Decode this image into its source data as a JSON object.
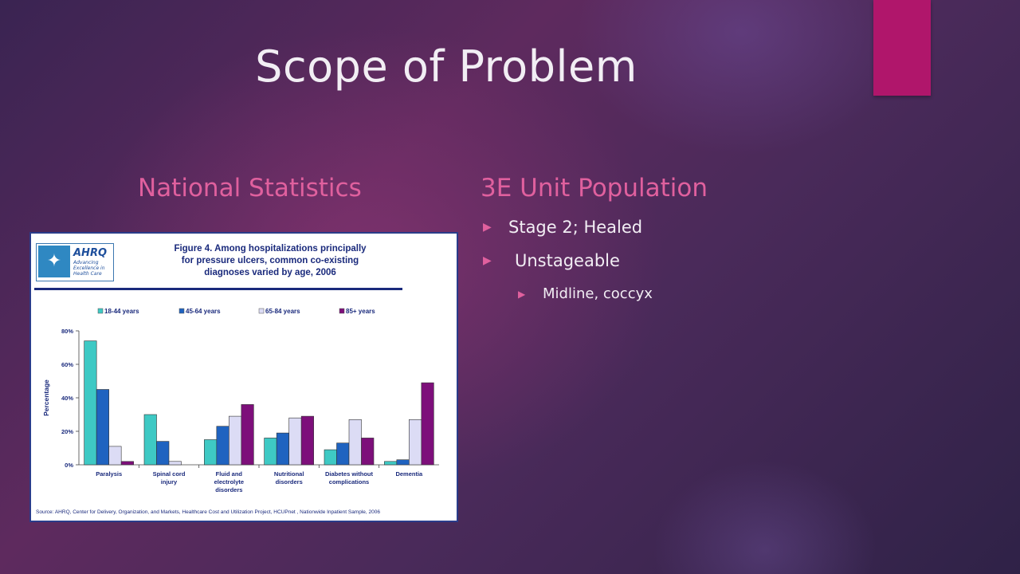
{
  "slide": {
    "title": "Scope of Problem",
    "left_heading": "National Statistics",
    "right_heading": "3E Unit Population",
    "bullets": [
      {
        "level": 1,
        "text": "Stage 2; Healed"
      },
      {
        "level": 1,
        "text": "Unstageable"
      },
      {
        "level": 2,
        "text": "Midline, coccyx"
      }
    ],
    "colors": {
      "accent": "#b0166b",
      "heading": "#e0609e",
      "text": "#f2eef4"
    }
  },
  "figure": {
    "logo_text": "AHRQ",
    "logo_tagline": "Advancing Excellence in Health Care",
    "title_lines": [
      "Figure 4. Among hospitalizations principally",
      "for pressure ulcers, common co-existing",
      "diagnoses varied by age, 2006"
    ],
    "source": "Source: AHRQ, Center for Delivery, Organization, and Markets, Healthcare Cost and Utilization Project, HCUPnet , Nationwide Inpatient Sample, 2006"
  },
  "chart_data": {
    "type": "bar",
    "ylabel": "Percentage",
    "ylim": [
      0,
      80
    ],
    "yticks": [
      "0%",
      "20%",
      "40%",
      "60%",
      "80%"
    ],
    "legend_placement": "top",
    "categories": [
      [
        "Paralysis"
      ],
      [
        "Spinal cord",
        "injury"
      ],
      [
        "Fluid and",
        "electrolyte",
        "disorders"
      ],
      [
        "Nutritional",
        "disorders"
      ],
      [
        "Diabetes without",
        "complications"
      ],
      [
        "Dementia"
      ]
    ],
    "series": [
      {
        "name": "18-44 years",
        "color": "#3ec9c4",
        "values": [
          74,
          30,
          15,
          16,
          9,
          2
        ]
      },
      {
        "name": "45-64 years",
        "color": "#1f63c0",
        "values": [
          45,
          14,
          23,
          19,
          13,
          3
        ]
      },
      {
        "name": "65-84 years",
        "color": "#dcdcf5",
        "values": [
          11,
          2,
          29,
          28,
          27,
          27
        ]
      },
      {
        "name": "85+ years",
        "color": "#7d0f7a",
        "values": [
          2,
          0,
          36,
          29,
          16,
          49
        ]
      }
    ]
  }
}
